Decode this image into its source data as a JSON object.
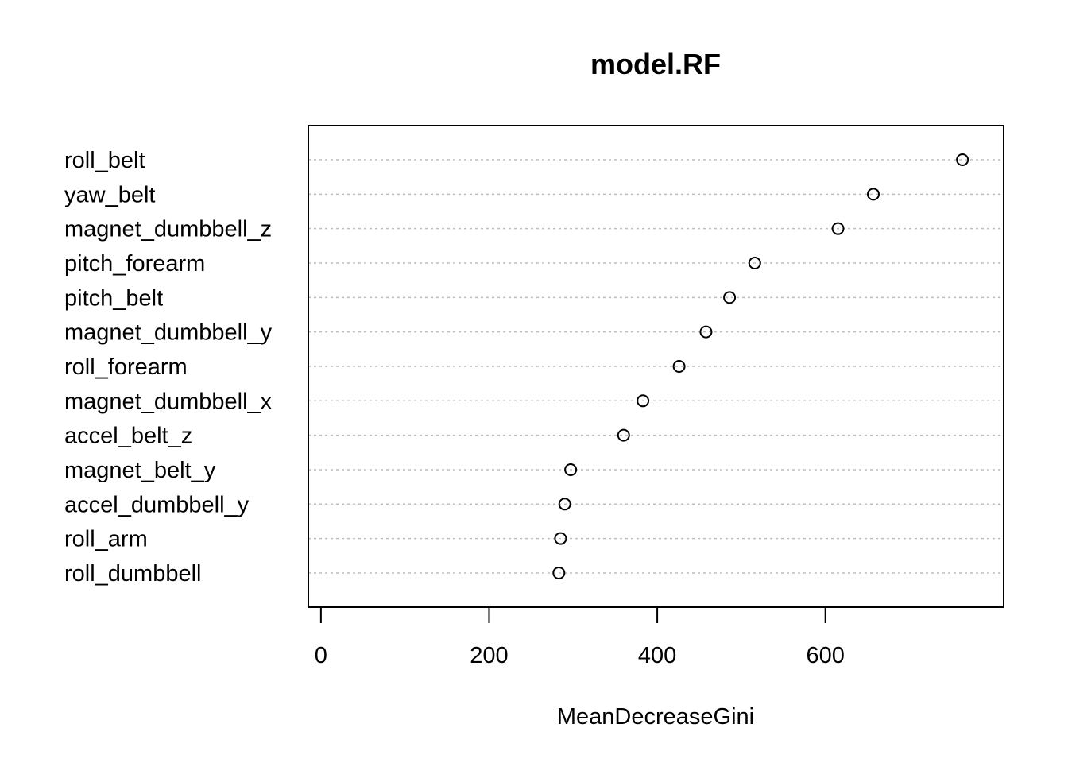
{
  "chart_data": {
    "type": "scatter",
    "title": "model.RF",
    "xlabel": "MeanDecreaseGini",
    "ylabel": "",
    "xlim": [
      -15,
      812
    ],
    "xticks": [
      0,
      200,
      400,
      600
    ],
    "grid": "horizontal-dotted",
    "categories": [
      "roll_belt",
      "yaw_belt",
      "magnet_dumbbell_z",
      "pitch_forearm",
      "pitch_belt",
      "magnet_dumbbell_y",
      "roll_forearm",
      "magnet_dumbbell_x",
      "accel_belt_z",
      "magnet_belt_y",
      "accel_dumbbell_y",
      "roll_arm",
      "roll_dumbbell"
    ],
    "values": [
      763,
      657,
      615,
      516,
      486,
      458,
      426,
      383,
      360,
      297,
      290,
      285,
      283
    ],
    "colors": {
      "point_stroke": "#000000",
      "grid": "#bebebe",
      "frame": "#000000"
    }
  }
}
